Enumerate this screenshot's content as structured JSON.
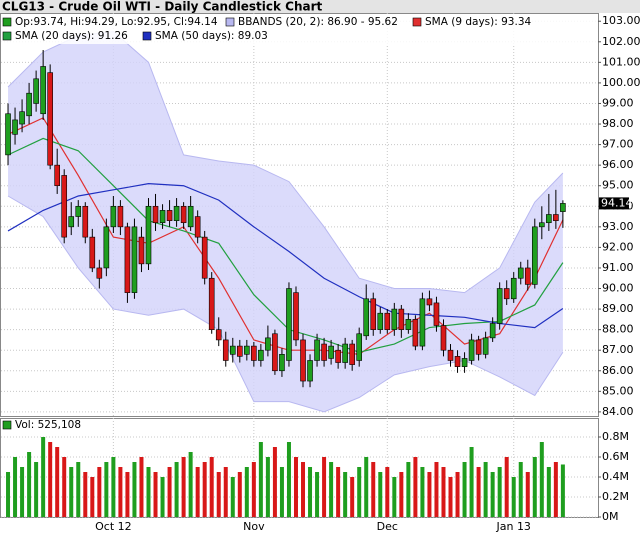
{
  "chart_data": {
    "type": "candlestick",
    "title": "CLG13 - Crude Oil WTI - Daily Candlestick Chart",
    "ohlc_label": "Op:93.74, Hi:94.29, Lo:92.95, Cl:94.14",
    "up_color": "#1f9e1f",
    "down_color": "#d81818",
    "x": [
      0,
      1,
      2,
      3,
      4,
      5,
      6,
      7,
      8,
      9,
      10,
      11,
      12,
      13,
      14,
      15,
      16,
      17,
      18,
      19,
      20,
      21,
      22,
      23,
      24,
      25,
      26,
      27,
      28,
      29,
      30,
      31,
      32,
      33,
      34,
      35,
      36,
      37,
      38,
      39,
      40,
      41,
      42,
      43,
      44,
      45,
      46,
      47,
      48,
      49,
      50,
      51,
      52,
      53,
      54,
      55,
      56,
      57,
      58,
      59,
      60,
      61,
      62,
      63,
      64,
      65,
      66,
      67,
      68,
      69,
      70,
      71,
      72,
      73,
      74,
      75,
      76,
      77,
      78,
      79
    ],
    "xlim": [
      -1,
      84
    ],
    "xticks": [
      {
        "value": 15,
        "label": "Oct 12"
      },
      {
        "value": 35,
        "label": "Nov"
      },
      {
        "value": 54,
        "label": "Dec"
      },
      {
        "value": 72,
        "label": "Jan 13"
      }
    ],
    "open": [
      96.5,
      97.5,
      98.0,
      98.4,
      99.0,
      98.5,
      100.5,
      96.0,
      95.5,
      93.0,
      93.5,
      94.0,
      92.5,
      91.0,
      91.0,
      93.0,
      94.0,
      93.0,
      89.8,
      92.5,
      91.2,
      94.0,
      93.2,
      93.8,
      93.3,
      94.0,
      93.0,
      93.5,
      92.5,
      90.5,
      88.0,
      87.5,
      86.8,
      87.2,
      86.8,
      87.2,
      86.5,
      87.0,
      87.8,
      86.0,
      86.5,
      89.8,
      87.5,
      85.5,
      86.5,
      87.3,
      86.6,
      87.0,
      86.4,
      87.3,
      86.5,
      87.7,
      89.5,
      88.0,
      88.8,
      88.0,
      89.0,
      88.0,
      88.5,
      87.2,
      89.5,
      89.3,
      88.2,
      87.0,
      86.7,
      86.2,
      86.5,
      87.5,
      86.8,
      87.6,
      88.3,
      90.0,
      89.5,
      90.5,
      91.0,
      90.2,
      93.0,
      93.2,
      93.6,
      93.74
    ],
    "high": [
      99.0,
      98.8,
      99.2,
      100.0,
      100.6,
      101.6,
      100.9,
      96.8,
      95.8,
      94.2,
      94.3,
      94.2,
      92.9,
      91.4,
      93.4,
      94.5,
      94.3,
      93.2,
      93.4,
      93.0,
      94.4,
      94.6,
      94.1,
      94.3,
      94.4,
      94.2,
      94.5,
      93.8,
      92.8,
      90.8,
      88.6,
      87.9,
      87.6,
      87.5,
      87.5,
      87.4,
      87.3,
      88.2,
      88.0,
      87.1,
      90.3,
      90.1,
      87.8,
      86.8,
      87.8,
      87.6,
      87.5,
      87.3,
      87.6,
      87.5,
      88.1,
      90.2,
      89.8,
      89.1,
      89.0,
      89.3,
      89.2,
      88.8,
      88.7,
      89.8,
      89.9,
      89.6,
      88.5,
      87.3,
      87.0,
      86.9,
      87.8,
      87.7,
      87.9,
      88.6,
      90.3,
      90.4,
      90.8,
      91.3,
      91.4,
      93.4,
      94.0,
      94.6,
      94.8,
      94.29
    ],
    "low": [
      96.0,
      97.0,
      97.6,
      98.0,
      98.6,
      98.2,
      95.8,
      94.6,
      92.2,
      92.6,
      93.0,
      92.2,
      90.8,
      90.0,
      90.6,
      92.7,
      92.6,
      89.3,
      89.5,
      90.8,
      90.9,
      92.8,
      92.9,
      93.0,
      93.0,
      92.9,
      92.8,
      92.2,
      90.2,
      87.8,
      87.2,
      86.2,
      86.4,
      86.4,
      86.5,
      86.2,
      86.2,
      86.7,
      85.8,
      85.7,
      86.2,
      87.2,
      85.2,
      85.2,
      86.2,
      86.2,
      86.3,
      86.1,
      86.1,
      86.0,
      86.2,
      87.5,
      87.7,
      87.8,
      87.8,
      87.7,
      87.6,
      87.8,
      87.0,
      87.0,
      88.9,
      87.9,
      86.7,
      86.2,
      85.9,
      85.9,
      86.3,
      86.5,
      86.6,
      87.4,
      88.0,
      89.2,
      89.3,
      90.2,
      89.9,
      90.0,
      92.4,
      92.8,
      92.9,
      92.95
    ],
    "close": [
      98.5,
      98.2,
      98.6,
      99.5,
      100.2,
      100.8,
      96.0,
      95.0,
      92.5,
      93.5,
      94.0,
      92.5,
      91.0,
      90.5,
      93.0,
      94.0,
      93.0,
      89.8,
      93.0,
      91.2,
      94.0,
      93.2,
      93.8,
      93.3,
      94.0,
      93.2,
      94.0,
      92.5,
      90.5,
      88.0,
      87.5,
      86.5,
      87.2,
      86.7,
      87.2,
      86.5,
      87.0,
      87.6,
      86.0,
      86.8,
      90.0,
      87.5,
      85.5,
      86.5,
      87.5,
      86.5,
      87.2,
      86.4,
      87.3,
      86.3,
      87.8,
      89.5,
      88.0,
      88.8,
      88.0,
      89.0,
      88.0,
      88.5,
      87.2,
      89.5,
      89.2,
      88.2,
      87.0,
      86.5,
      86.2,
      86.6,
      87.5,
      86.8,
      87.6,
      88.3,
      90.0,
      89.5,
      90.5,
      91.0,
      90.2,
      93.0,
      93.2,
      93.6,
      93.3,
      94.14
    ],
    "ylim": [
      83.8,
      103.4
    ],
    "yticks": [
      {
        "value": 84,
        "label": "84.00"
      },
      {
        "value": 85,
        "label": "85.00"
      },
      {
        "value": 86,
        "label": "86.00"
      },
      {
        "value": 87,
        "label": "87.00"
      },
      {
        "value": 88,
        "label": "88.00"
      },
      {
        "value": 89,
        "label": "89.00"
      },
      {
        "value": 90,
        "label": "90.00"
      },
      {
        "value": 91,
        "label": "91.00"
      },
      {
        "value": 92,
        "label": "92.00"
      },
      {
        "value": 93,
        "label": "93.00"
      },
      {
        "value": 94,
        "label": "94.00"
      },
      {
        "value": 95,
        "label": "95.00"
      },
      {
        "value": 96,
        "label": "96.00"
      },
      {
        "value": 97,
        "label": "97.00"
      },
      {
        "value": 98,
        "label": "98.00"
      },
      {
        "value": 99,
        "label": "99.00"
      },
      {
        "value": 100,
        "label": "100.00"
      },
      {
        "value": 101,
        "label": "101.00"
      },
      {
        "value": 102,
        "label": "102.00"
      },
      {
        "value": 103,
        "label": "103.00"
      }
    ],
    "grid": true,
    "bbands": {
      "name": "BBANDS (20, 2): 86.90 - 95.62",
      "color": "#b8b8f0",
      "fill": "#d2d2fa",
      "x": [
        0,
        5,
        10,
        15,
        20,
        25,
        30,
        35,
        40,
        45,
        50,
        55,
        60,
        65,
        70,
        75,
        79
      ],
      "upper": [
        99.8,
        101.5,
        102.3,
        102.5,
        101.0,
        96.5,
        96.2,
        96.0,
        95.2,
        93.0,
        90.5,
        90.0,
        90.0,
        89.8,
        91.0,
        94.2,
        95.62
      ],
      "lower": [
        94.5,
        93.5,
        91.0,
        89.0,
        88.7,
        89.0,
        88.0,
        84.5,
        84.5,
        84.0,
        84.7,
        85.8,
        86.2,
        86.5,
        85.7,
        84.8,
        86.9
      ]
    },
    "series": [
      {
        "name": "SMA (9 days): 93.34",
        "color": "#e03030",
        "x": [
          0,
          5,
          10,
          15,
          20,
          25,
          30,
          35,
          40,
          45,
          50,
          55,
          60,
          65,
          70,
          75,
          79
        ],
        "values": [
          97.5,
          98.3,
          95.5,
          92.5,
          92.2,
          93.0,
          90.5,
          87.5,
          87.0,
          87.0,
          86.8,
          88.0,
          88.8,
          87.3,
          87.8,
          90.5,
          93.34
        ]
      },
      {
        "name": "SMA (20 days): 91.26",
        "color": "#22a040",
        "x": [
          0,
          5,
          10,
          15,
          20,
          25,
          30,
          35,
          40,
          45,
          50,
          55,
          60,
          65,
          70,
          75,
          79
        ],
        "values": [
          96.5,
          97.3,
          96.7,
          95.0,
          93.3,
          92.8,
          92.2,
          89.7,
          88.0,
          87.5,
          86.9,
          87.3,
          88.1,
          88.3,
          88.4,
          89.2,
          91.26
        ]
      },
      {
        "name": "SMA (50 days): 89.03",
        "color": "#2030c0",
        "x": [
          0,
          5,
          10,
          15,
          20,
          25,
          30,
          35,
          40,
          45,
          50,
          55,
          60,
          65,
          70,
          75,
          79
        ],
        "values": [
          92.8,
          93.8,
          94.5,
          94.8,
          95.1,
          95.0,
          94.3,
          93.0,
          91.8,
          90.5,
          89.6,
          88.8,
          88.7,
          88.6,
          88.3,
          88.1,
          89.03
        ]
      }
    ],
    "volume": {
      "label": "Vol: 525,108",
      "color": "#1f9e1f",
      "values": [
        0.45,
        0.6,
        0.5,
        0.65,
        0.55,
        0.8,
        0.75,
        0.7,
        0.6,
        0.5,
        0.55,
        0.45,
        0.4,
        0.5,
        0.55,
        0.6,
        0.5,
        0.45,
        0.55,
        0.6,
        0.5,
        0.45,
        0.4,
        0.5,
        0.55,
        0.6,
        0.65,
        0.5,
        0.55,
        0.6,
        0.45,
        0.5,
        0.4,
        0.45,
        0.5,
        0.55,
        0.75,
        0.6,
        0.7,
        0.5,
        0.75,
        0.6,
        0.55,
        0.5,
        0.45,
        0.6,
        0.55,
        0.5,
        0.45,
        0.4,
        0.5,
        0.6,
        0.55,
        0.45,
        0.5,
        0.4,
        0.45,
        0.55,
        0.6,
        0.5,
        0.45,
        0.55,
        0.5,
        0.4,
        0.45,
        0.55,
        0.7,
        0.5,
        0.55,
        0.45,
        0.5,
        0.6,
        0.4,
        0.55,
        0.45,
        0.6,
        0.75,
        0.5,
        0.55,
        0.525108
      ],
      "ylim": [
        0,
        0.99
      ],
      "yticks": [
        {
          "value": 0,
          "label": "0M"
        },
        {
          "value": 0.2,
          "label": "0.2M"
        },
        {
          "value": 0.4,
          "label": "0.4M"
        },
        {
          "value": 0.6,
          "label": "0.6M"
        },
        {
          "value": 0.8,
          "label": "0.8M"
        }
      ]
    }
  }
}
